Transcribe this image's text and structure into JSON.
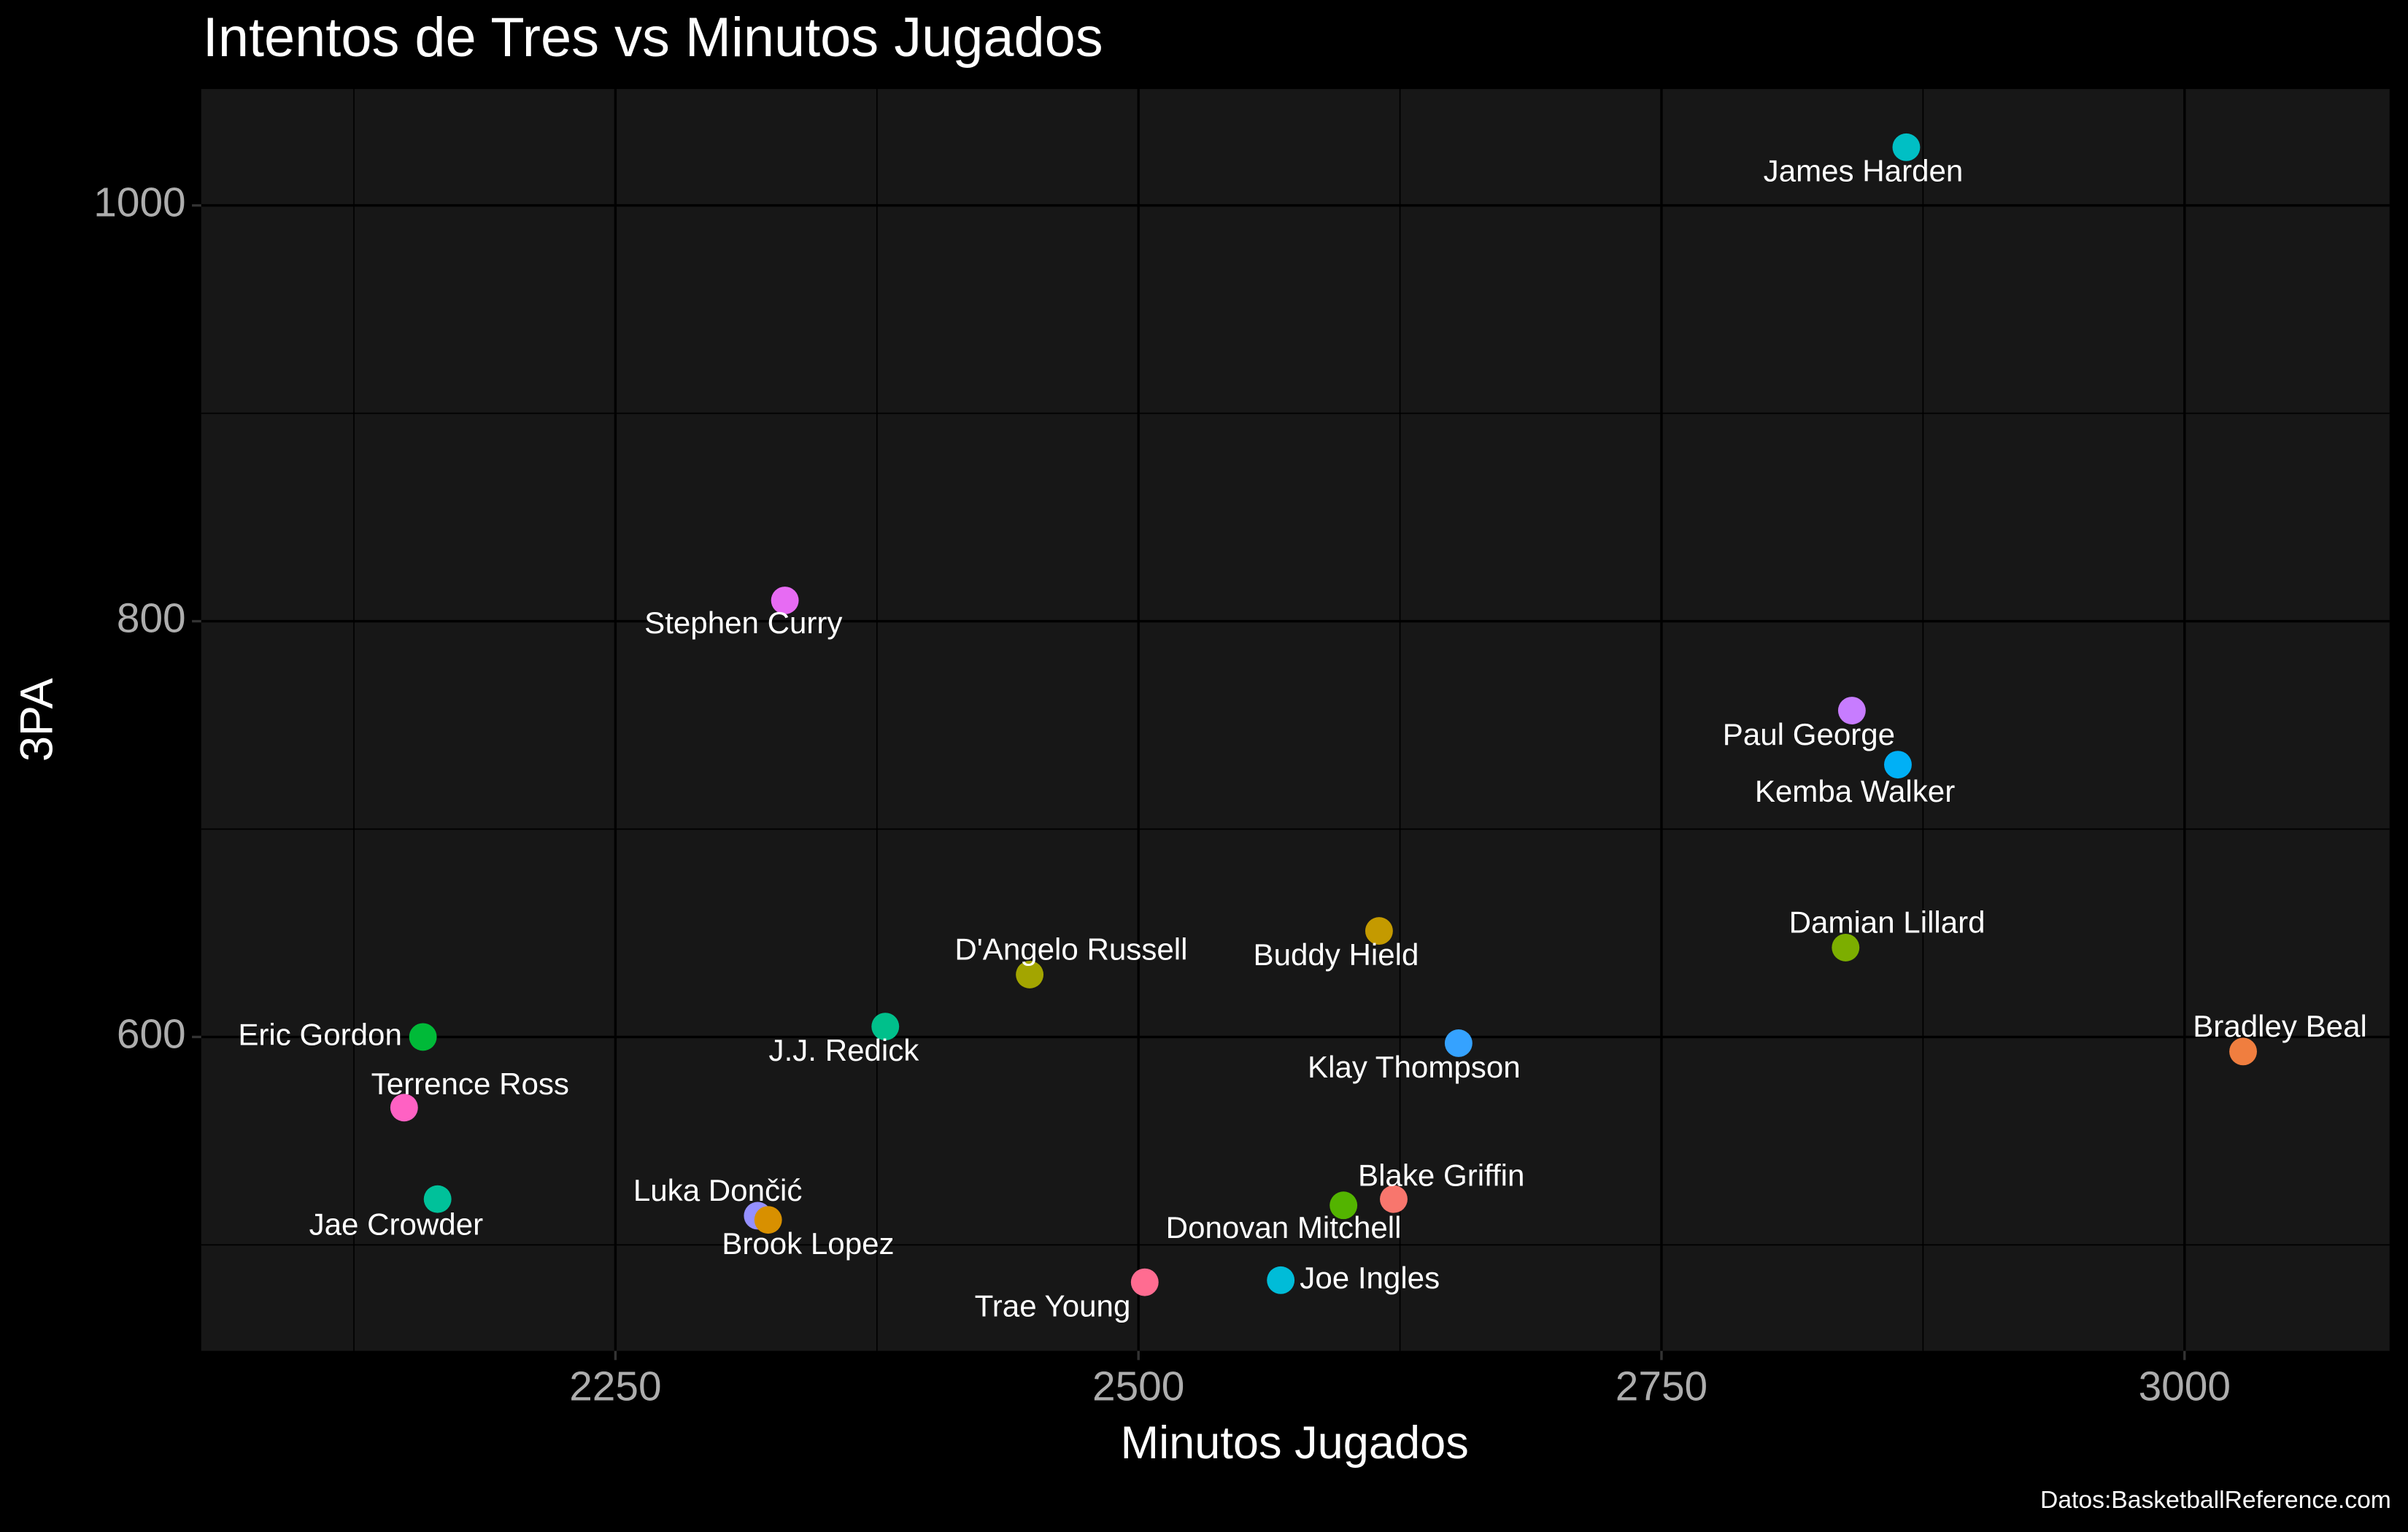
{
  "chart_data": {
    "type": "scatter",
    "title": "Intentos de Tres vs Minutos Jugados",
    "x_label": "Minutos Jugados",
    "y_label": "3PA",
    "caption": "Datos:BasketballReference.com",
    "labels": [
      "James Harden",
      "Stephen Curry",
      "Paul George",
      "Kemba Walker",
      "Damian Lillard",
      "Bradley Beal",
      "Buddy Hield",
      "D'Angelo Russell",
      "J.J. Redick",
      "Eric Gordon",
      "Klay Thompson",
      "Terrence Ross",
      "Jae Crowder",
      "Blake Griffin",
      "Donovan Mitchell",
      "Luka Dončić",
      "Brook Lopez",
      "Trae Young",
      "Joe Ingles"
    ],
    "x": [
      2867,
      2331,
      2841,
      2863,
      2838,
      3028,
      2615,
      2448,
      2379,
      2158,
      2653,
      2149,
      2165,
      2622,
      2598,
      2318,
      2323,
      2503,
      2568
    ],
    "values": [
      1028,
      810,
      757,
      731,
      643,
      593,
      651,
      630,
      605,
      600,
      597,
      566,
      522,
      522,
      519,
      514,
      512,
      482,
      483
    ],
    "colors": [
      "#00BFC4",
      "#E76BF3",
      "#C77CFF",
      "#00B0F6",
      "#7CAE00",
      "#F07E3F",
      "#C49A00",
      "#A3A500",
      "#00C08B",
      "#00BA38",
      "#35A2FF",
      "#FF61C3",
      "#00C19A",
      "#F8766D",
      "#53B400",
      "#9590FF",
      "#D89000",
      "#FF6C91",
      "#00BCD8"
    ],
    "xlim": [
      2052,
      3098
    ],
    "ylim": [
      449,
      1056
    ],
    "xticks": [
      2250,
      2500,
      2750,
      3000
    ],
    "yticks": [
      600,
      800,
      1000
    ],
    "x_minor_grid": [
      2125,
      2375,
      2625,
      2875
    ],
    "y_minor_grid": [
      500,
      700,
      900
    ],
    "grid": true
  }
}
